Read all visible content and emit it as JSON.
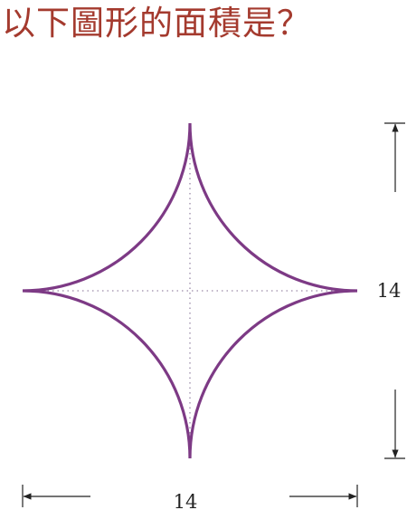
{
  "question": {
    "text": "以下圖形的面積是？",
    "color": "#a43a2e"
  },
  "figure": {
    "shape": "four-pointed star bounded by four quarter-circle arcs",
    "curve_color": "#7d3a85",
    "guide_color": "#9a8aa8",
    "dimension_color": "#222222",
    "height_label": "14",
    "width_label": "14"
  }
}
